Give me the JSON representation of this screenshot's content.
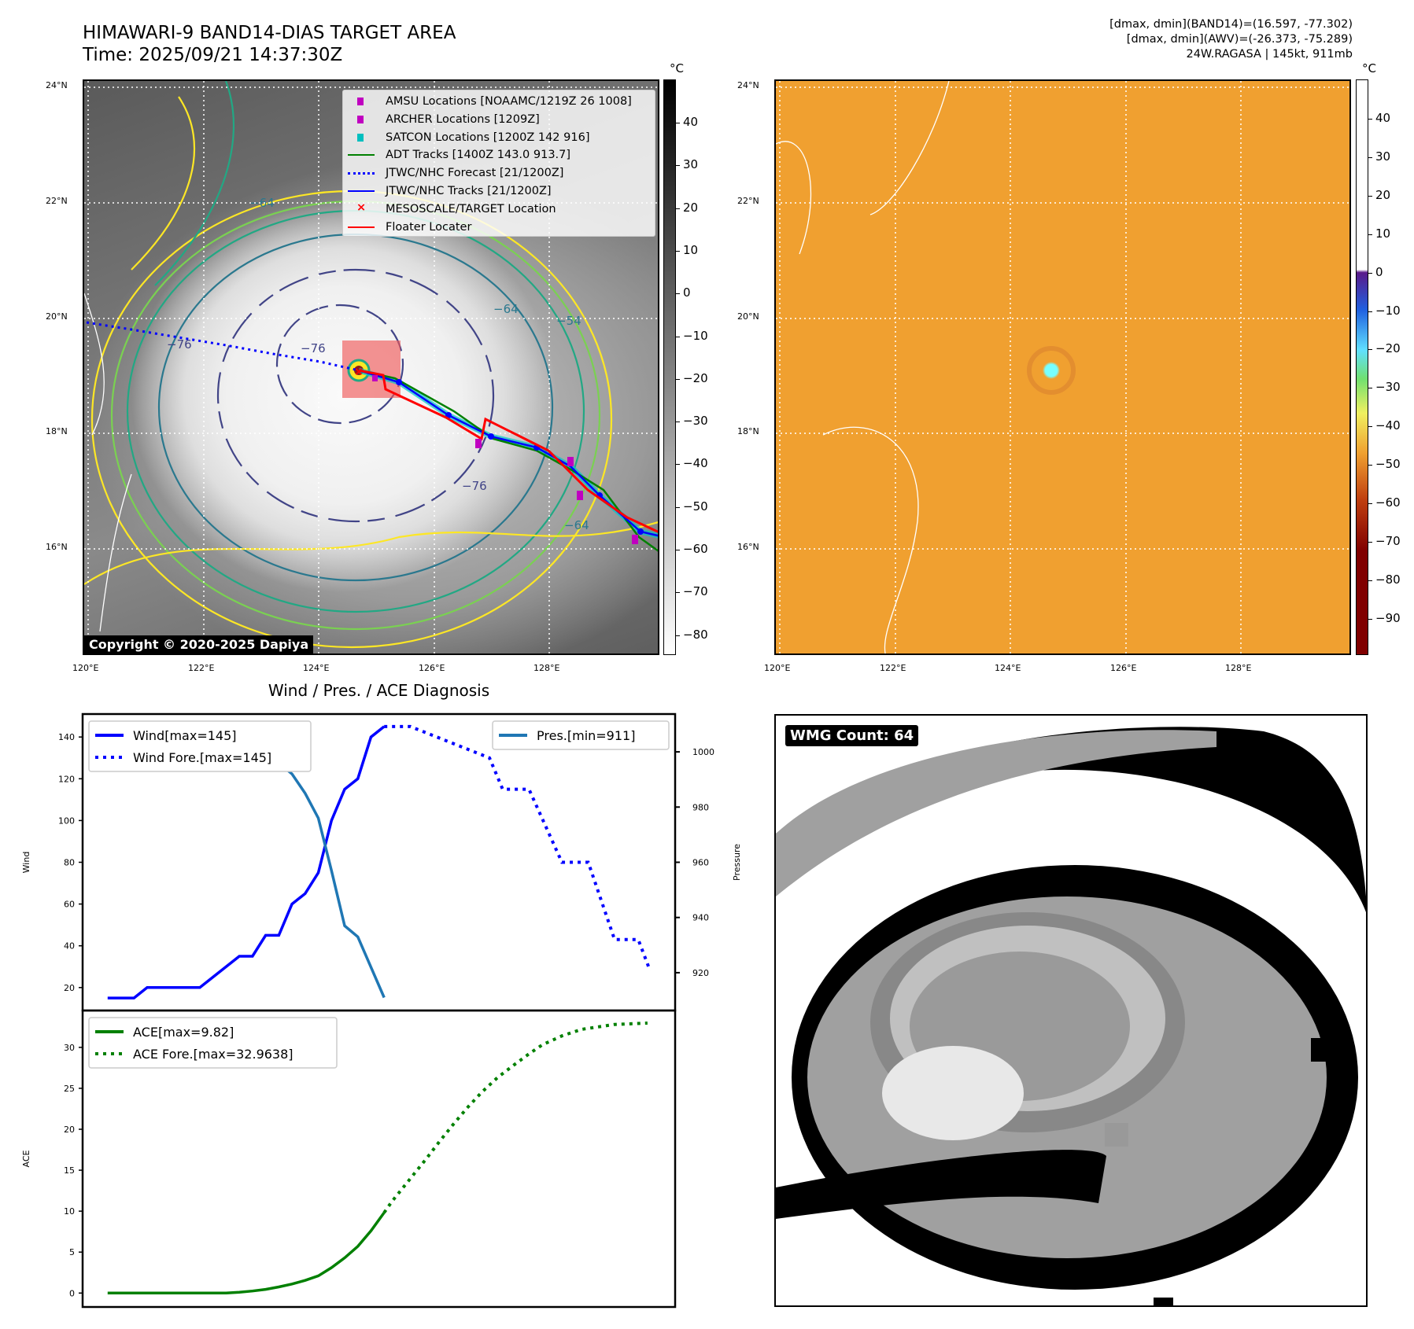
{
  "header": {
    "title_line1": "HIMAWARI-9 BAND14-DIAS TARGET AREA",
    "title_line2": "Time: 2025/09/21 14:37:30Z",
    "info_line1": "[dmax, dmin](BAND14)=(16.597, -77.302)",
    "info_line2": "[dmax, dmin](AWV)=(-26.373, -75.289)",
    "info_line3": "24W.RAGASA | 145kt, 911mb"
  },
  "maps": {
    "lat_labels": [
      "24°N",
      "22°N",
      "20°N",
      "18°N",
      "16°N"
    ],
    "lon_labels": [
      "120°E",
      "122°E",
      "124°E",
      "126°E",
      "128°E"
    ],
    "unit": "°C",
    "left_colorbar_ticks": [
      "40",
      "30",
      "20",
      "10",
      "0",
      "−10",
      "−20",
      "−30",
      "−40",
      "−50",
      "−60",
      "−70",
      "−80"
    ],
    "right_colorbar_ticks": [
      "40",
      "30",
      "20",
      "10",
      "0",
      "−10",
      "−20",
      "−30",
      "−40",
      "−50",
      "−60",
      "−70",
      "−80",
      "−90"
    ],
    "contour_labels": [
      "−64",
      "−76",
      "−76",
      "−54",
      "−64",
      "−76",
      "−64"
    ],
    "copyright": "Copyright © 2020-2025 Dapiya",
    "legend": [
      {
        "label": "AMSU Locations [NOAAMC/1219Z 26 1008]",
        "color": "#c000c0"
      },
      {
        "label": "ARCHER Locations [1209Z]",
        "color": "#c000c0"
      },
      {
        "label": "SATCON Locations [1200Z 142 916]",
        "color": "#00bfbf"
      },
      {
        "label": "ADT Tracks [1400Z 143.0 913.7]",
        "color": "#008000"
      },
      {
        "label": "JTWC/NHC Forecast [21/1200Z]",
        "color": "#0000ff"
      },
      {
        "label": "JTWC/NHC Tracks [21/1200Z]",
        "color": "#0000ff"
      },
      {
        "label": "MESOSCALE/TARGET Location",
        "color": "#ff0000"
      },
      {
        "label": "Floater Locater",
        "color": "#ff0000"
      }
    ]
  },
  "wmg": {
    "label": "WMG Count: 64"
  },
  "chart_data": [
    {
      "type": "line",
      "title": "Wind / Pres. / ACE Diagnosis",
      "ylabel": "Wind",
      "y2label": "Pressure",
      "xlim": [
        -1.9,
        43.1
      ],
      "ylim": [
        9,
        151
      ],
      "y2lim": [
        906.3,
        1013.7
      ],
      "yticks": [
        20,
        40,
        60,
        80,
        100,
        120,
        140
      ],
      "y2ticks": [
        920,
        940,
        960,
        980,
        1000
      ],
      "legend_left": [
        "Wind[max=145]",
        "Wind Fore.[max=145]"
      ],
      "legend_right": [
        "Pres.[min=911]"
      ],
      "series": [
        {
          "name": "Wind[max=145]",
          "color": "#0000ff",
          "style": "solid",
          "axis": "left",
          "x": [
            0,
            1,
            2,
            3,
            4,
            5,
            6,
            7,
            8,
            9,
            10,
            11,
            12,
            13,
            14,
            15,
            16,
            17,
            18,
            19,
            20,
            21
          ],
          "y": [
            15,
            15,
            15,
            20,
            20,
            20,
            20,
            20,
            25,
            30,
            35,
            35,
            45,
            45,
            60,
            65,
            75,
            100,
            115,
            120,
            140,
            145
          ]
        },
        {
          "name": "Wind Fore.[max=145]",
          "color": "#0000ff",
          "style": "dotted",
          "axis": "left",
          "x": [
            21,
            22,
            23,
            29,
            30,
            32,
            34.5,
            36.5,
            38.5,
            40.3,
            41.2
          ],
          "y": [
            145,
            145,
            145,
            130,
            115,
            115,
            80,
            80,
            43,
            43,
            28
          ]
        },
        {
          "name": "Pres.[min=911]",
          "color": "#1f77b4",
          "style": "solid",
          "axis": "right",
          "x": [
            0,
            1,
            2,
            3,
            4,
            5,
            6,
            7,
            8,
            9,
            10,
            11,
            12,
            13,
            14,
            15,
            16,
            17,
            18,
            19,
            20,
            21
          ],
          "y": [
            1009,
            1006,
            1006,
            1006,
            1006,
            1008,
            1008,
            1008,
            1006,
            1005,
            1004,
            1000,
            998,
            996,
            992,
            985,
            976,
            957,
            937,
            933,
            922,
            911
          ]
        }
      ]
    },
    {
      "type": "line",
      "ylabel": "ACE",
      "xlim": [
        -1.9,
        43.1
      ],
      "ylim": [
        -1.7,
        34.5
      ],
      "yticks": [
        0,
        5,
        10,
        15,
        20,
        25,
        30
      ],
      "legend_left": [
        "ACE[max=9.82]",
        "ACE Fore.[max=32.9638]"
      ],
      "series": [
        {
          "name": "ACE[max=9.82]",
          "color": "#008000",
          "style": "solid",
          "x": [
            0,
            1,
            2,
            3,
            4,
            5,
            6,
            7,
            8,
            9,
            10,
            11,
            12,
            13,
            14,
            15,
            16,
            17,
            18,
            19,
            20,
            21
          ],
          "y": [
            0,
            0,
            0,
            0,
            0,
            0,
            0,
            0,
            0,
            0,
            0.1,
            0.25,
            0.45,
            0.75,
            1.1,
            1.55,
            2.1,
            3.1,
            4.3,
            5.7,
            7.6,
            9.82
          ]
        },
        {
          "name": "ACE Fore.[max=32.9638]",
          "color": "#008000",
          "style": "dotted",
          "x": [
            21,
            21.6,
            23,
            24.2,
            25.2,
            26.2,
            27.3,
            28.4,
            29.6,
            30.9,
            32,
            33,
            34.5,
            36,
            38.5,
            41
          ],
          "y": [
            9.82,
            11.2,
            14,
            16.4,
            18.5,
            20.5,
            22.6,
            24.5,
            26.3,
            27.9,
            29.2,
            30.3,
            31.4,
            32.2,
            32.8,
            32.96
          ]
        }
      ]
    }
  ]
}
